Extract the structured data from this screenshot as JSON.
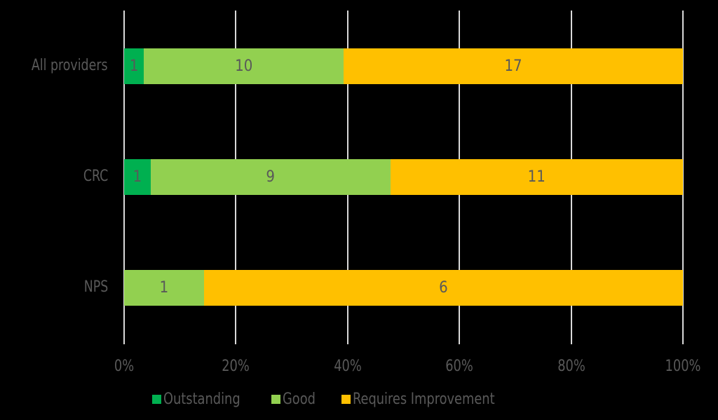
{
  "chart_data": {
    "type": "bar",
    "orientation": "horizontal",
    "stacked": "percent",
    "title": "",
    "xlabel": "",
    "ylabel": "",
    "categories": [
      "All providers",
      "CRC",
      "NPS"
    ],
    "series": [
      {
        "name": "Outstanding",
        "color": "#00b050",
        "values": [
          1,
          1,
          0
        ]
      },
      {
        "name": "Good",
        "color": "#92d050",
        "values": [
          10,
          9,
          1
        ]
      },
      {
        "name": "Requires Improvement",
        "color": "#ffc000",
        "values": [
          17,
          11,
          6
        ]
      }
    ],
    "data_labels": [
      [
        "1",
        "10",
        "17"
      ],
      [
        "1",
        "9",
        "11"
      ],
      [
        "",
        "1",
        "6"
      ]
    ],
    "x_ticks": [
      "0%",
      "20%",
      "40%",
      "60%",
      "80%",
      "100%"
    ],
    "xlim": [
      0,
      100
    ],
    "grid": true,
    "legend_position": "bottom"
  },
  "legend": [
    "Outstanding",
    "Good",
    "Requires Improvement"
  ]
}
